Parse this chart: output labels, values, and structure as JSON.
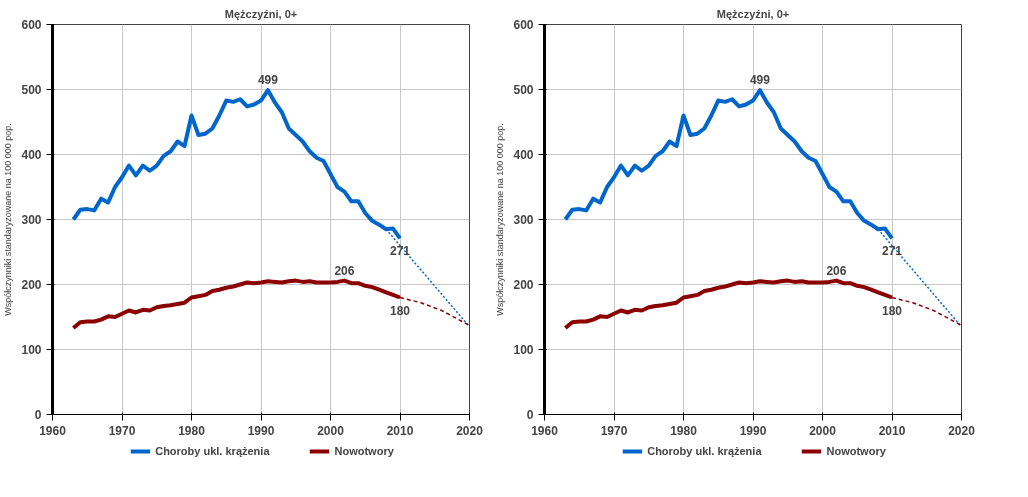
{
  "chart_data": [
    {
      "type": "line",
      "title": "Mężczyźni, 0+",
      "ylabel": "Współczynniki standaryzowane na 100 000 pop.",
      "xlim": [
        1960,
        2020
      ],
      "xticks": [
        1960,
        1970,
        1980,
        1990,
        2000,
        2010,
        2020
      ],
      "ylim": [
        0,
        600
      ],
      "yticks": [
        0,
        100,
        200,
        300,
        400,
        500,
        600
      ],
      "grid": true,
      "legend": "bottom",
      "marker": "none",
      "line_style": "solid",
      "series": [
        {
          "name": "Choroby ukl. krążenia",
          "color": "#0066cc",
          "x": [
            1963,
            1964,
            1965,
            1966,
            1967,
            1968,
            1969,
            1970,
            1971,
            1972,
            1973,
            1974,
            1975,
            1976,
            1977,
            1978,
            1979,
            1980,
            1981,
            1982,
            1983,
            1984,
            1985,
            1986,
            1987,
            1988,
            1989,
            1990,
            1991,
            1992,
            1993,
            1994,
            1995,
            1996,
            1997,
            1998,
            1999,
            2000,
            2001,
            2002,
            2003,
            2004,
            2005,
            2006,
            2007,
            2008,
            2009,
            2010
          ],
          "values": [
            300,
            315,
            316,
            314,
            332,
            326,
            350,
            365,
            383,
            368,
            383,
            375,
            383,
            398,
            405,
            420,
            413,
            460,
            430,
            432,
            440,
            460,
            483,
            481,
            485,
            474,
            477,
            483,
            499,
            480,
            465,
            440,
            430,
            420,
            405,
            395,
            390,
            370,
            350,
            343,
            328,
            328,
            310,
            298,
            292,
            285,
            286,
            271
          ]
        },
        {
          "name": "Nowotwory",
          "color": "#8b0000",
          "x": [
            1963,
            1964,
            1965,
            1966,
            1967,
            1968,
            1969,
            1970,
            1971,
            1972,
            1973,
            1974,
            1975,
            1976,
            1977,
            1978,
            1979,
            1980,
            1981,
            1982,
            1983,
            1984,
            1985,
            1986,
            1987,
            1988,
            1989,
            1990,
            1991,
            1992,
            1993,
            1994,
            1995,
            1996,
            1997,
            1998,
            1999,
            2000,
            2001,
            2002,
            2003,
            2004,
            2005,
            2006,
            2007,
            2008,
            2009,
            2010
          ],
          "values": [
            133,
            142,
            143,
            143,
            146,
            151,
            150,
            155,
            160,
            157,
            161,
            160,
            165,
            167,
            168,
            170,
            172,
            180,
            182,
            184,
            190,
            192,
            195,
            197,
            200,
            203,
            202,
            203,
            205,
            204,
            203,
            205,
            206,
            204,
            205,
            203,
            203,
            203,
            204,
            206,
            202,
            202,
            198,
            196,
            192,
            188,
            184,
            180
          ]
        },
        {
          "color": "#0066cc",
          "line_style": "dotted",
          "x": [
            2008,
            2020
          ],
          "values": [
            285,
            135
          ]
        },
        {
          "color": "#8b0000",
          "line_style": "dashed",
          "x": [
            2010,
            2013,
            2016,
            2020
          ],
          "values": [
            180,
            172,
            160,
            137
          ]
        }
      ],
      "annotations": [
        {
          "text": "499",
          "x": 1991,
          "y": 499
        },
        {
          "text": "271",
          "x": 2010,
          "y": 271
        },
        {
          "text": "206",
          "x": 2002,
          "y": 206
        },
        {
          "text": "180",
          "x": 2010,
          "y": 180
        }
      ]
    },
    {
      "type": "line",
      "title": "Mężczyźni, 0+",
      "ylabel": "Współczynniki standaryzowane na 100 000 pop.",
      "xlim": [
        1960,
        2020
      ],
      "xticks": [
        1960,
        1970,
        1980,
        1990,
        2000,
        2010,
        2020
      ],
      "ylim": [
        0,
        600
      ],
      "yticks": [
        0,
        100,
        200,
        300,
        400,
        500,
        600
      ],
      "grid": true,
      "legend": "bottom",
      "marker": "none",
      "line_style": "solid",
      "series": [
        {
          "name": "Choroby ukl. krążenia",
          "color": "#0066cc",
          "x": [
            1963,
            1964,
            1965,
            1966,
            1967,
            1968,
            1969,
            1970,
            1971,
            1972,
            1973,
            1974,
            1975,
            1976,
            1977,
            1978,
            1979,
            1980,
            1981,
            1982,
            1983,
            1984,
            1985,
            1986,
            1987,
            1988,
            1989,
            1990,
            1991,
            1992,
            1993,
            1994,
            1995,
            1996,
            1997,
            1998,
            1999,
            2000,
            2001,
            2002,
            2003,
            2004,
            2005,
            2006,
            2007,
            2008,
            2009,
            2010
          ],
          "values": [
            300,
            315,
            316,
            314,
            332,
            326,
            350,
            365,
            383,
            368,
            383,
            375,
            383,
            398,
            405,
            420,
            413,
            460,
            430,
            432,
            440,
            460,
            483,
            481,
            485,
            474,
            477,
            483,
            499,
            480,
            465,
            440,
            430,
            420,
            405,
            395,
            390,
            370,
            350,
            343,
            328,
            328,
            310,
            298,
            292,
            285,
            286,
            271
          ]
        },
        {
          "name": "Nowotwory",
          "color": "#8b0000",
          "x": [
            1963,
            1964,
            1965,
            1966,
            1967,
            1968,
            1969,
            1970,
            1971,
            1972,
            1973,
            1974,
            1975,
            1976,
            1977,
            1978,
            1979,
            1980,
            1981,
            1982,
            1983,
            1984,
            1985,
            1986,
            1987,
            1988,
            1989,
            1990,
            1991,
            1992,
            1993,
            1994,
            1995,
            1996,
            1997,
            1998,
            1999,
            2000,
            2001,
            2002,
            2003,
            2004,
            2005,
            2006,
            2007,
            2008,
            2009,
            2010
          ],
          "values": [
            133,
            142,
            143,
            143,
            146,
            151,
            150,
            155,
            160,
            157,
            161,
            160,
            165,
            167,
            168,
            170,
            172,
            180,
            182,
            184,
            190,
            192,
            195,
            197,
            200,
            203,
            202,
            203,
            205,
            204,
            203,
            205,
            206,
            204,
            205,
            203,
            203,
            203,
            204,
            206,
            202,
            202,
            198,
            196,
            192,
            188,
            184,
            180
          ]
        },
        {
          "color": "#0066cc",
          "line_style": "dotted",
          "x": [
            2008,
            2020
          ],
          "values": [
            285,
            135
          ]
        },
        {
          "color": "#8b0000",
          "line_style": "dashed",
          "x": [
            2010,
            2013,
            2016,
            2020
          ],
          "values": [
            180,
            172,
            160,
            137
          ]
        }
      ],
      "annotations": [
        {
          "text": "499",
          "x": 1991,
          "y": 499
        },
        {
          "text": "271",
          "x": 2010,
          "y": 271
        },
        {
          "text": "206",
          "x": 2002,
          "y": 206
        },
        {
          "text": "180",
          "x": 2010,
          "y": 180
        }
      ]
    }
  ]
}
